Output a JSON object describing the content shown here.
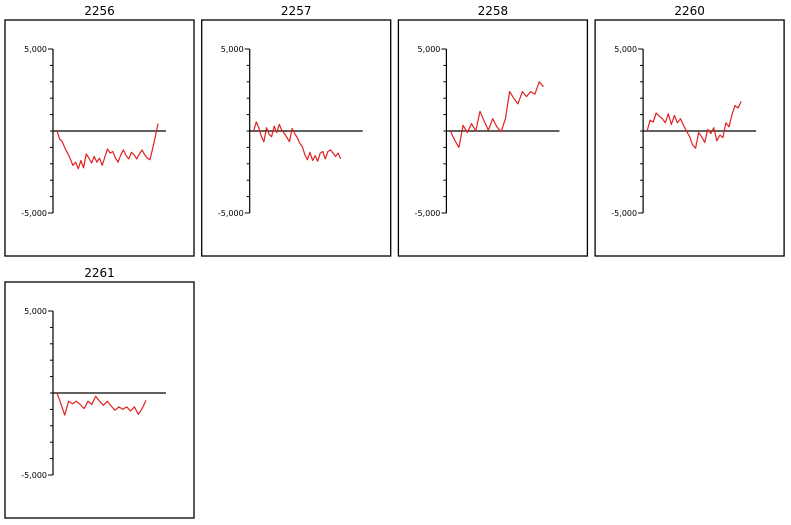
{
  "chart_data": [
    {
      "type": "line",
      "title": "2256",
      "ylim": [
        -5000,
        5000
      ],
      "y_tick_labels": [
        "5,000",
        "-5,000"
      ],
      "grid": false,
      "colors": {
        "line": "#e02020",
        "zero_line": "#000000"
      },
      "series": [
        {
          "values": [
            0,
            -500,
            -650,
            -1050,
            -1350,
            -1700,
            -2100,
            -1900,
            -2300,
            -1800,
            -2250,
            -1400,
            -1650,
            -1950,
            -1550,
            -1900,
            -1650,
            -2100,
            -1600,
            -1100,
            -1350,
            -1250,
            -1650,
            -1900,
            -1450,
            -1150,
            -1500,
            -1700,
            -1300,
            -1450,
            -1700,
            -1400,
            -1150,
            -1450,
            -1650,
            -1750,
            -1050,
            -350,
            450
          ]
        }
      ]
    },
    {
      "type": "line",
      "title": "2257",
      "ylim": [
        -5000,
        5000
      ],
      "y_tick_labels": [
        "5,000",
        "-5,000"
      ],
      "grid": false,
      "colors": {
        "line": "#e02020",
        "zero_line": "#000000"
      },
      "series": [
        {
          "values": [
            0,
            550,
            200,
            -350,
            -650,
            200,
            -200,
            -350,
            300,
            -100,
            400,
            50,
            -150,
            -400,
            -650,
            150,
            -150,
            -400,
            -750,
            -950,
            -1450,
            -1750,
            -1300,
            -1800,
            -1500,
            -1850,
            -1350,
            -1250,
            -1700,
            -1250,
            -1150,
            -1350,
            -1550,
            -1350,
            -1700
          ]
        }
      ]
    },
    {
      "type": "line",
      "title": "2258",
      "ylim": [
        -5000,
        5000
      ],
      "y_tick_labels": [
        "5,000",
        "-5,000"
      ],
      "grid": false,
      "colors": {
        "line": "#e02020",
        "zero_line": "#000000"
      },
      "series": [
        {
          "values": [
            0,
            -550,
            -1000,
            350,
            -100,
            450,
            0,
            1200,
            600,
            50,
            750,
            250,
            -50,
            750,
            2400,
            2000,
            1650,
            2400,
            2100,
            2400,
            2250,
            3000,
            2700
          ]
        }
      ]
    },
    {
      "type": "line",
      "title": "2260",
      "ylim": [
        -5000,
        5000
      ],
      "y_tick_labels": [
        "5,000",
        "-5,000"
      ],
      "grid": false,
      "colors": {
        "line": "#e02020",
        "zero_line": "#000000"
      },
      "series": [
        {
          "values": [
            0,
            650,
            550,
            1100,
            900,
            750,
            500,
            1050,
            400,
            950,
            500,
            750,
            350,
            0,
            -350,
            -850,
            -1050,
            -100,
            -350,
            -700,
            100,
            -150,
            200,
            -600,
            -250,
            -400,
            500,
            250,
            1000,
            1550,
            1400,
            1800
          ]
        }
      ]
    },
    {
      "type": "line",
      "title": "2261",
      "ylim": [
        -5000,
        5000
      ],
      "y_tick_labels": [
        "5,000",
        "-5,000"
      ],
      "grid": false,
      "colors": {
        "line": "#e02020",
        "zero_line": "#000000"
      },
      "series": [
        {
          "values": [
            0,
            -650,
            -1350,
            -500,
            -650,
            -500,
            -700,
            -950,
            -500,
            -700,
            -200,
            -500,
            -750,
            -500,
            -800,
            -1050,
            -850,
            -1000,
            -850,
            -1100,
            -850,
            -1300,
            -950,
            -450
          ]
        }
      ]
    }
  ]
}
